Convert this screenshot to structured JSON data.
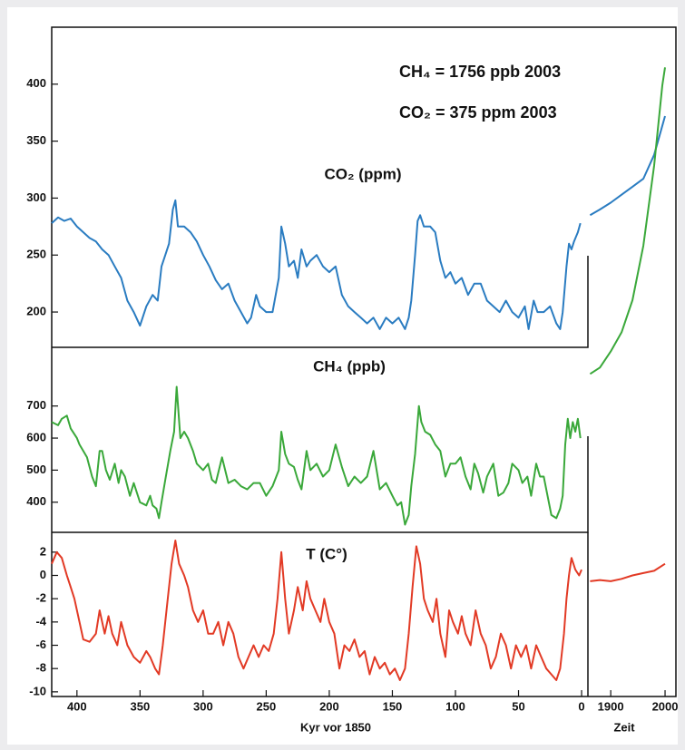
{
  "annotations": [
    "CH₄ = 1756 ppb 2003",
    "CO₂ = 375 ppm 2003"
  ],
  "x_axis": {
    "label": "Kyr vor 1850",
    "xlim": [
      420,
      -5
    ],
    "xticks": [
      400,
      350,
      300,
      250,
      200,
      150,
      100,
      50,
      0
    ]
  },
  "x2_axis": {
    "label": "Zeit",
    "xlim": [
      1858,
      2020
    ],
    "xticks": [
      1900,
      2000
    ]
  },
  "chart_data": [
    {
      "type": "line",
      "title": "CO₂ (ppm)",
      "color": "#2a7cc1",
      "ylim": [
        169,
        450
      ],
      "yticks": [
        200,
        250,
        300,
        350,
        400
      ],
      "series": [
        {
          "x": [
            420,
            415,
            410,
            405,
            400,
            395,
            390,
            385,
            380,
            375,
            370,
            365,
            360,
            355,
            350,
            345,
            340,
            336,
            333,
            330,
            327,
            324,
            322,
            320,
            315,
            310,
            305,
            300,
            295,
            290,
            285,
            280,
            275,
            270,
            265,
            262,
            258,
            255,
            250,
            245,
            240,
            238,
            235,
            232,
            228,
            225,
            222,
            218,
            215,
            210,
            205,
            200,
            195,
            190,
            185,
            180,
            175,
            170,
            165,
            160,
            155,
            150,
            145,
            140,
            137,
            135,
            132,
            130,
            128,
            125,
            120,
            116,
            112,
            108,
            104,
            100,
            95,
            90,
            85,
            80,
            75,
            70,
            65,
            60,
            55,
            50,
            45,
            42,
            38,
            35,
            30,
            25,
            20,
            17,
            15,
            12,
            10,
            8,
            6,
            3,
            1
          ],
          "values": [
            278,
            283,
            280,
            282,
            275,
            270,
            265,
            262,
            255,
            250,
            240,
            230,
            210,
            200,
            188,
            205,
            215,
            210,
            240,
            250,
            260,
            290,
            298,
            275,
            275,
            270,
            262,
            250,
            240,
            228,
            220,
            225,
            210,
            200,
            190,
            195,
            215,
            205,
            200,
            200,
            230,
            275,
            260,
            240,
            245,
            230,
            255,
            240,
            245,
            250,
            240,
            235,
            240,
            215,
            205,
            200,
            195,
            190,
            195,
            185,
            195,
            190,
            195,
            185,
            195,
            210,
            250,
            280,
            285,
            275,
            275,
            270,
            245,
            230,
            235,
            225,
            230,
            215,
            225,
            225,
            210,
            205,
            200,
            210,
            200,
            195,
            205,
            185,
            210,
            200,
            200,
            205,
            190,
            185,
            200,
            240,
            260,
            255,
            262,
            270,
            278
          ]
        },
        {
          "axis": "x2",
          "x": [
            1862,
            1880,
            1900,
            1920,
            1940,
            1960,
            1980,
            2000
          ],
          "values": [
            285,
            290,
            296,
            303,
            310,
            317,
            338,
            372
          ]
        }
      ]
    },
    {
      "type": "line",
      "title": "CH₄ (ppb)",
      "color": "#3aa83a",
      "ylim": [
        306,
        883
      ],
      "yticks": [
        400,
        500,
        600,
        700
      ],
      "series": [
        {
          "x": [
            420,
            415,
            412,
            408,
            405,
            400,
            398,
            395,
            392,
            388,
            385,
            382,
            380,
            377,
            374,
            370,
            367,
            365,
            362,
            358,
            355,
            350,
            345,
            342,
            340,
            337,
            335,
            333,
            330,
            326,
            323,
            321,
            318,
            315,
            312,
            308,
            305,
            300,
            296,
            293,
            290,
            285,
            280,
            275,
            270,
            265,
            260,
            255,
            250,
            245,
            240,
            238,
            235,
            232,
            228,
            225,
            222,
            218,
            215,
            210,
            205,
            200,
            195,
            190,
            185,
            180,
            175,
            170,
            165,
            160,
            155,
            150,
            146,
            143,
            140,
            137,
            135,
            132,
            129,
            127,
            124,
            120,
            116,
            112,
            108,
            104,
            100,
            96,
            92,
            88,
            85,
            82,
            78,
            75,
            70,
            66,
            62,
            58,
            55,
            50,
            47,
            43,
            40,
            36,
            33,
            30,
            27,
            24,
            20,
            17,
            15,
            13,
            11,
            9,
            7,
            5,
            3,
            1
          ],
          "values": [
            650,
            640,
            660,
            670,
            630,
            600,
            580,
            560,
            540,
            480,
            450,
            560,
            560,
            500,
            470,
            520,
            460,
            500,
            480,
            420,
            460,
            400,
            390,
            420,
            390,
            380,
            350,
            400,
            470,
            560,
            620,
            760,
            600,
            620,
            600,
            560,
            520,
            500,
            520,
            470,
            460,
            540,
            460,
            470,
            450,
            440,
            460,
            460,
            420,
            450,
            500,
            620,
            550,
            520,
            510,
            470,
            440,
            560,
            500,
            520,
            480,
            500,
            580,
            510,
            450,
            480,
            460,
            480,
            560,
            440,
            460,
            420,
            390,
            400,
            330,
            360,
            450,
            550,
            700,
            650,
            620,
            610,
            580,
            560,
            480,
            520,
            520,
            540,
            480,
            440,
            520,
            490,
            430,
            480,
            520,
            420,
            430,
            460,
            520,
            500,
            460,
            480,
            420,
            520,
            480,
            480,
            420,
            360,
            350,
            380,
            420,
            580,
            660,
            600,
            650,
            620,
            660,
            600
          ]
        },
        {
          "axis": "x2",
          "x": [
            1862,
            1880,
            1900,
            1920,
            1940,
            1960,
            1980,
            1995,
            2000
          ],
          "values": [
            800,
            820,
            870,
            930,
            1030,
            1200,
            1450,
            1700,
            1756
          ]
        }
      ]
    },
    {
      "type": "line",
      "title": "T (C°)",
      "color": "#e23a25",
      "ylim": [
        -10.4,
        3.7
      ],
      "yticks": [
        -10,
        -8,
        -6,
        -4,
        -2,
        0,
        2
      ],
      "series": [
        {
          "x": [
            420,
            416,
            412,
            408,
            405,
            402,
            398,
            395,
            390,
            385,
            382,
            378,
            375,
            372,
            368,
            365,
            360,
            355,
            350,
            345,
            342,
            338,
            335,
            332,
            328,
            325,
            322,
            319,
            315,
            312,
            308,
            304,
            300,
            296,
            292,
            288,
            284,
            280,
            276,
            272,
            268,
            264,
            260,
            256,
            252,
            248,
            244,
            241,
            238,
            235,
            232,
            228,
            225,
            221,
            218,
            215,
            211,
            207,
            204,
            200,
            196,
            192,
            188,
            184,
            180,
            176,
            172,
            168,
            164,
            160,
            156,
            152,
            148,
            144,
            140,
            137,
            134,
            131,
            128,
            125,
            122,
            118,
            115,
            112,
            108,
            105,
            102,
            98,
            95,
            92,
            88,
            84,
            80,
            76,
            72,
            68,
            64,
            60,
            56,
            52,
            48,
            44,
            40,
            36,
            32,
            28,
            24,
            20,
            17,
            14,
            12,
            10,
            8,
            5,
            2,
            0
          ],
          "values": [
            1,
            2,
            1.5,
            0,
            -1,
            -2,
            -4,
            -5.5,
            -5.7,
            -5,
            -3,
            -5,
            -3.5,
            -5,
            -6,
            -4,
            -6,
            -7,
            -7.5,
            -6.5,
            -7,
            -8,
            -8.5,
            -6,
            -2,
            1,
            3,
            1,
            0,
            -1,
            -3,
            -4,
            -3,
            -5,
            -5,
            -4,
            -6,
            -4,
            -5,
            -7,
            -8,
            -7,
            -6,
            -7,
            -6,
            -6.5,
            -5,
            -2,
            2,
            -2,
            -5,
            -3,
            -1,
            -3,
            -0.5,
            -2,
            -3,
            -4,
            -2,
            -4,
            -5,
            -8,
            -6,
            -6.5,
            -5.5,
            -7,
            -6.5,
            -8.5,
            -7,
            -8,
            -7.5,
            -8.5,
            -8,
            -9,
            -8,
            -5,
            -1,
            2.5,
            1,
            -2,
            -3,
            -4,
            -2,
            -5,
            -7,
            -3,
            -4,
            -5,
            -3.5,
            -5,
            -6,
            -3,
            -5,
            -6,
            -8,
            -7,
            -5,
            -6,
            -8,
            -6,
            -7,
            -6,
            -8,
            -6,
            -7,
            -8,
            -8.5,
            -9,
            -8,
            -5,
            -2,
            0,
            1.5,
            0.5,
            0,
            0.5
          ]
        },
        {
          "axis": "x2",
          "x": [
            1862,
            1880,
            1900,
            1920,
            1940,
            1960,
            1980,
            2000
          ],
          "values": [
            -0.5,
            -0.4,
            -0.5,
            -0.3,
            0,
            0.2,
            0.4,
            1
          ]
        }
      ]
    }
  ]
}
